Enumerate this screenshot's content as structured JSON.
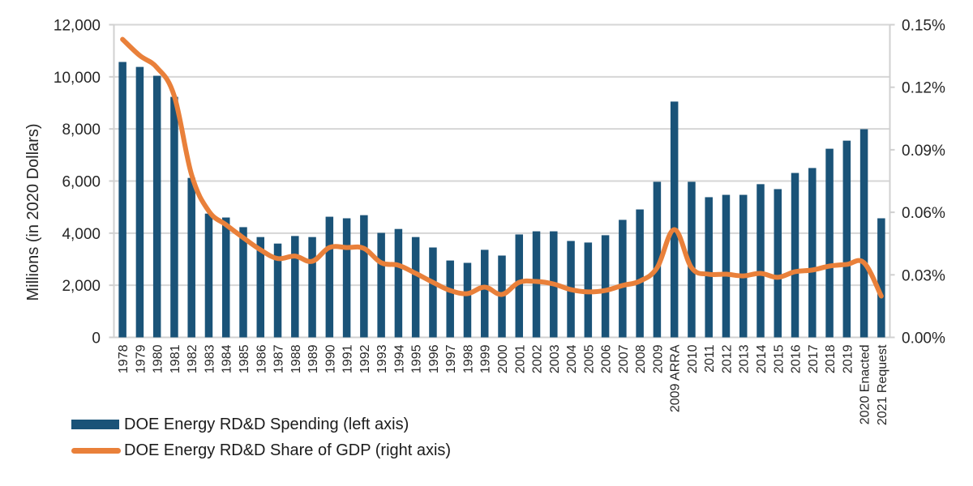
{
  "chart_data": {
    "type": "bar+line",
    "title": "",
    "categories": [
      "1978",
      "1979",
      "1980",
      "1981",
      "1982",
      "1983",
      "1984",
      "1985",
      "1986",
      "1987",
      "1988",
      "1989",
      "1990",
      "1991",
      "1992",
      "1993",
      "1994",
      "1995",
      "1996",
      "1997",
      "1998",
      "1999",
      "2000",
      "2001",
      "2002",
      "2003",
      "2004",
      "2005",
      "2006",
      "2007",
      "2008",
      "2009",
      "2009 ARRA",
      "2010",
      "2011",
      "2012",
      "2013",
      "2014",
      "2015",
      "2016",
      "2017",
      "2018",
      "2019",
      "2020 Enacted",
      "2021 Request"
    ],
    "series": [
      {
        "name": "DOE Energy RD&D Spending (left axis)",
        "type": "bar",
        "axis": "left",
        "color": "#1a5378",
        "values": [
          10570,
          10380,
          10040,
          9230,
          6120,
          4750,
          4600,
          4230,
          3850,
          3600,
          3890,
          3850,
          4630,
          4570,
          4690,
          4010,
          4160,
          3850,
          3450,
          2950,
          2860,
          3360,
          3140,
          3950,
          4070,
          4070,
          3700,
          3640,
          3920,
          4510,
          4910,
          5970,
          9050,
          5970,
          5380,
          5470,
          5470,
          5880,
          5690,
          6310,
          6500,
          7240,
          7550,
          7990,
          4570
        ]
      },
      {
        "name": "DOE Energy RD&D Share of GDP (right axis)",
        "type": "line",
        "axis": "right",
        "color": "#e9803a",
        "values": [
          0.143,
          0.1352,
          0.1294,
          0.1158,
          0.0781,
          0.0606,
          0.054,
          0.0478,
          0.042,
          0.0378,
          0.039,
          0.0365,
          0.0431,
          0.0431,
          0.0427,
          0.0358,
          0.0346,
          0.0307,
          0.0264,
          0.0225,
          0.021,
          0.0241,
          0.0206,
          0.0264,
          0.0268,
          0.0256,
          0.0229,
          0.0218,
          0.0225,
          0.0249,
          0.027,
          0.0334,
          0.0517,
          0.0334,
          0.0303,
          0.0303,
          0.0295,
          0.0307,
          0.0288,
          0.0315,
          0.0323,
          0.0342,
          0.035,
          0.0358,
          0.0198
        ]
      }
    ],
    "ylabel": "Millions (in 2020 Dollars)",
    "y_left": {
      "min": 0,
      "max": 12000,
      "ticks": [
        0,
        2000,
        4000,
        6000,
        8000,
        10000,
        12000
      ],
      "tick_labels": [
        "0",
        "2,000",
        "4,000",
        "6,000",
        "8,000",
        "10,000",
        "12,000"
      ]
    },
    "y_right": {
      "min": 0,
      "max": 0.15,
      "unit": "%",
      "ticks": [
        0,
        0.03,
        0.06,
        0.09,
        0.12,
        0.15
      ],
      "tick_labels": [
        "0.00%",
        "0.03%",
        "0.06%",
        "0.09%",
        "0.12%",
        "0.15%"
      ]
    },
    "grid": true,
    "legend_position": "bottom-left"
  },
  "legend": {
    "bar_label": "DOE Energy RD&D Spending (left axis)",
    "line_label": "DOE Energy RD&D Share of GDP (right axis)"
  }
}
